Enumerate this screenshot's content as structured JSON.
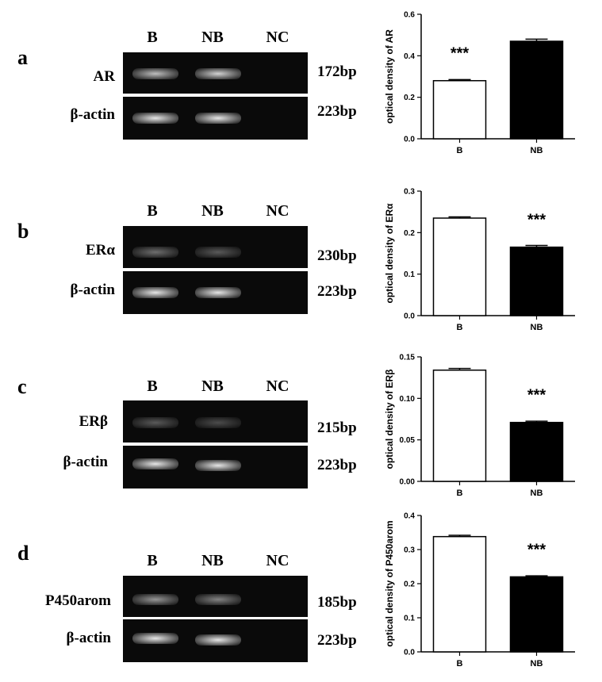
{
  "panels": [
    {
      "letter": "a",
      "lanes": [
        "B",
        "NB",
        "NC"
      ],
      "target_label": "AR",
      "target_bp": "172bp",
      "control_label": "β-actin",
      "control_bp": "223bp",
      "target_band_intensity": [
        0.75,
        0.85,
        0
      ],
      "control_band_intensity": [
        0.95,
        0.95,
        0
      ]
    },
    {
      "letter": "b",
      "lanes": [
        "B",
        "NB",
        "NC"
      ],
      "target_label": "ERα",
      "target_bp": "230bp",
      "control_label": "β-actin",
      "control_bp": "223bp",
      "target_band_intensity": [
        0.35,
        0.25,
        0
      ],
      "control_band_intensity": [
        0.95,
        0.95,
        0
      ]
    },
    {
      "letter": "c",
      "lanes": [
        "B",
        "NB",
        "NC"
      ],
      "target_label": "ERβ",
      "target_bp": "215bp",
      "control_label": "β-actin",
      "control_bp": "223bp",
      "target_band_intensity": [
        0.25,
        0.18,
        0
      ],
      "control_band_intensity": [
        0.95,
        0.95,
        0
      ]
    },
    {
      "letter": "d",
      "lanes": [
        "B",
        "NB",
        "NC"
      ],
      "target_label": "P450arom",
      "target_bp": "185bp",
      "control_label": "β-actin",
      "control_bp": "223bp",
      "target_band_intensity": [
        0.55,
        0.45,
        0
      ],
      "control_band_intensity": [
        0.95,
        0.95,
        0
      ]
    }
  ],
  "chart_data": [
    {
      "type": "bar",
      "categories": [
        "B",
        "NB"
      ],
      "values": [
        0.28,
        0.47
      ],
      "errors": [
        0.005,
        0.01
      ],
      "ylabel": "optical density of AR",
      "ylim": [
        0,
        0.6
      ],
      "yticks": [
        "0.0",
        "0.2",
        "0.4",
        "0.6"
      ],
      "significance": [
        "***",
        ""
      ],
      "bar_fills": [
        "#ffffff",
        "#000000"
      ]
    },
    {
      "type": "bar",
      "categories": [
        "B",
        "NB"
      ],
      "values": [
        0.235,
        0.165
      ],
      "errors": [
        0.003,
        0.004
      ],
      "ylabel": "optical density of ERα",
      "ylim": [
        0,
        0.3
      ],
      "yticks": [
        "0.0",
        "0.1",
        "0.2",
        "0.3"
      ],
      "significance": [
        "",
        "***"
      ],
      "bar_fills": [
        "#ffffff",
        "#000000"
      ]
    },
    {
      "type": "bar",
      "categories": [
        "B",
        "NB"
      ],
      "values": [
        0.134,
        0.071
      ],
      "errors": [
        0.002,
        0.0015
      ],
      "ylabel": "optical density of ERβ",
      "ylim": [
        0,
        0.15
      ],
      "yticks": [
        "0.00",
        "0.05",
        "0.10",
        "0.15"
      ],
      "significance": [
        "",
        "***"
      ],
      "bar_fills": [
        "#ffffff",
        "#000000"
      ]
    },
    {
      "type": "bar",
      "categories": [
        "B",
        "NB"
      ],
      "values": [
        0.338,
        0.22
      ],
      "errors": [
        0.004,
        0.003
      ],
      "ylabel": "optical density of P450arom",
      "ylim": [
        0,
        0.4
      ],
      "yticks": [
        "0.0",
        "0.1",
        "0.2",
        "0.3",
        "0.4"
      ],
      "significance": [
        "",
        "***"
      ],
      "bar_fills": [
        "#ffffff",
        "#000000"
      ]
    }
  ]
}
